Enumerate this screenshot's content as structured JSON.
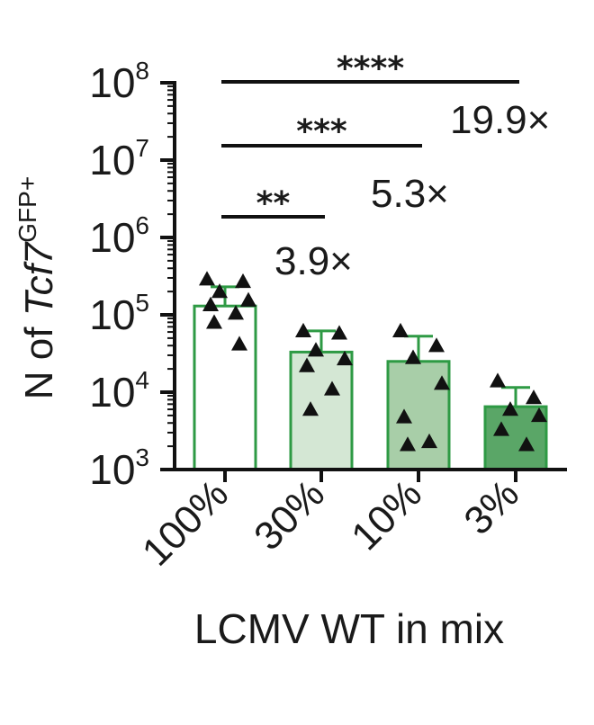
{
  "chart_data": {
    "type": "bar",
    "categories": [
      "100%",
      "30%",
      "10%",
      "3%"
    ],
    "values": [
      130000,
      33000,
      25000,
      6500
    ],
    "errors_upper": [
      230000,
      62000,
      53000,
      11500
    ],
    "points": [
      [
        290000,
        270000,
        200000,
        155000,
        135000,
        105000,
        80000,
        42000
      ],
      [
        62000,
        58000,
        35000,
        27000,
        22000,
        11000,
        6000
      ],
      [
        62000,
        40000,
        28000,
        13000,
        4800,
        2300,
        2100
      ],
      [
        14000,
        8500,
        6000,
        5000,
        3300,
        2100
      ]
    ],
    "fills": [
      "#ffffff",
      "#d4e7d4",
      "#a8cea8",
      "#5aa667"
    ],
    "edge_color": "#2e9a44",
    "ylabel_prefix": "N of ",
    "ylabel_gene": "Tcf7",
    "ylabel_sup": "GFP+",
    "xlabel": "LCMV WT in mix",
    "yscale": "log",
    "ylim": [
      1000,
      100000000
    ],
    "yticks": [
      {
        "base": "10",
        "exp": "3"
      },
      {
        "base": "10",
        "exp": "4"
      },
      {
        "base": "10",
        "exp": "5"
      },
      {
        "base": "10",
        "exp": "6"
      },
      {
        "base": "10",
        "exp": "7"
      },
      {
        "base": "10",
        "exp": "8"
      }
    ],
    "significance": [
      {
        "from": 0,
        "to": 1,
        "stars": "**",
        "fold": "3.9×"
      },
      {
        "from": 0,
        "to": 2,
        "stars": "***",
        "fold": "5.3×"
      },
      {
        "from": 0,
        "to": 3,
        "stars": "****",
        "fold": "19.9×"
      }
    ]
  }
}
